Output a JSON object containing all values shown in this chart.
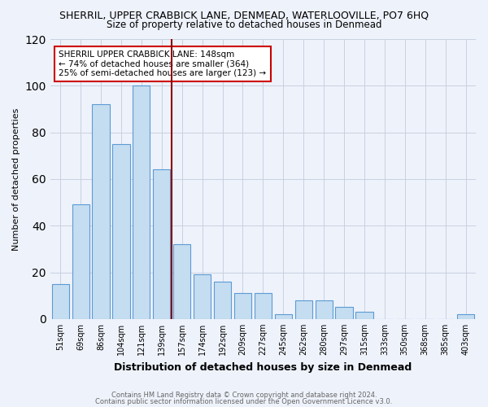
{
  "title": "SHERRIL, UPPER CRABBICK LANE, DENMEAD, WATERLOOVILLE, PO7 6HQ",
  "subtitle": "Size of property relative to detached houses in Denmead",
  "xlabel": "Distribution of detached houses by size in Denmead",
  "ylabel": "Number of detached properties",
  "bar_labels": [
    "51sqm",
    "69sqm",
    "86sqm",
    "104sqm",
    "121sqm",
    "139sqm",
    "157sqm",
    "174sqm",
    "192sqm",
    "209sqm",
    "227sqm",
    "245sqm",
    "262sqm",
    "280sqm",
    "297sqm",
    "315sqm",
    "333sqm",
    "350sqm",
    "368sqm",
    "385sqm",
    "403sqm"
  ],
  "bar_values": [
    15,
    49,
    92,
    75,
    100,
    64,
    32,
    19,
    16,
    11,
    11,
    2,
    8,
    8,
    5,
    3,
    0,
    0,
    0,
    0,
    2
  ],
  "bar_color": "#c5ddf0",
  "bar_edge_color": "#5b9bd5",
  "vline_x": 5.5,
  "vline_color": "#8b0000",
  "annotation_title": "SHERRIL UPPER CRABBICK LANE: 148sqm",
  "annotation_line1": "← 74% of detached houses are smaller (364)",
  "annotation_line2": "25% of semi-detached houses are larger (123) →",
  "annotation_box_color": "#ffffff",
  "annotation_box_edge": "#cc0000",
  "ylim": [
    0,
    120
  ],
  "yticks": [
    0,
    20,
    40,
    60,
    80,
    100,
    120
  ],
  "footer1": "Contains HM Land Registry data © Crown copyright and database right 2024.",
  "footer2": "Contains public sector information licensed under the Open Government Licence v3.0.",
  "bg_color": "#eef2fb",
  "plot_bg_color": "#eef2fb",
  "grid_color": "#c8d0e0"
}
